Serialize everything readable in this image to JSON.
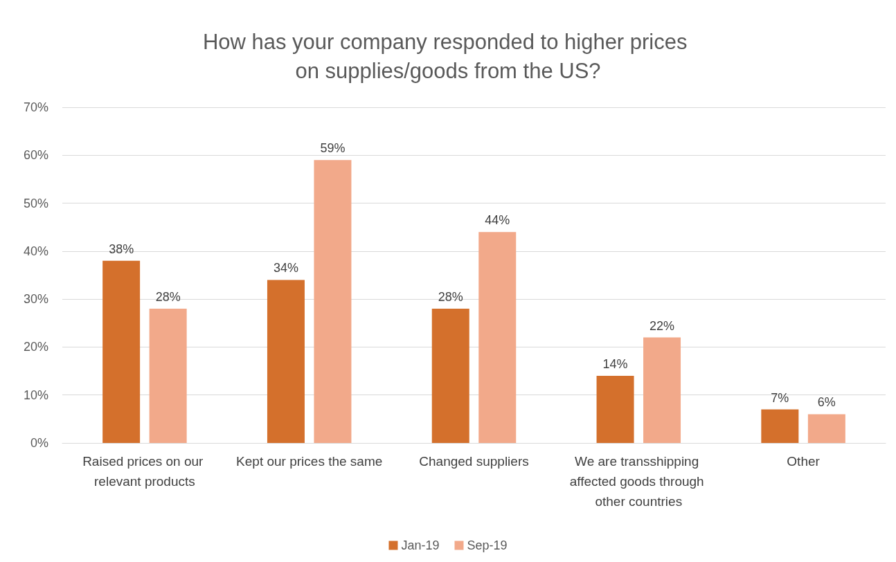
{
  "chart_data": {
    "type": "bar",
    "title": "How has your company responded to higher prices on supplies/goods from the US?",
    "categories": [
      "Raised prices on our relevant products",
      "Kept our prices the same",
      "Changed suppliers",
      "We are transshipping affected goods through other countries",
      "Other"
    ],
    "series": [
      {
        "name": "Jan-19",
        "color": "#d4702c",
        "values": [
          38,
          34,
          28,
          14,
          7
        ],
        "value_labels": [
          "38%",
          "34%",
          "28%",
          "14%",
          "7%"
        ]
      },
      {
        "name": "Sep-19",
        "color": "#f2a98a",
        "values": [
          28,
          59,
          44,
          22,
          6
        ],
        "value_labels": [
          "28%",
          "59%",
          "44%",
          "22%",
          "6%"
        ]
      }
    ],
    "ylim": [
      0,
      70
    ],
    "yticks": [
      {
        "value": 0,
        "label": "0%"
      },
      {
        "value": 10,
        "label": "10%"
      },
      {
        "value": 20,
        "label": "20%"
      },
      {
        "value": 30,
        "label": "30%"
      },
      {
        "value": 40,
        "label": "40%"
      },
      {
        "value": 50,
        "label": "50%"
      },
      {
        "value": 60,
        "label": "60%"
      },
      {
        "value": 70,
        "label": "70%"
      }
    ],
    "grid": "y",
    "legend": "bottom"
  }
}
